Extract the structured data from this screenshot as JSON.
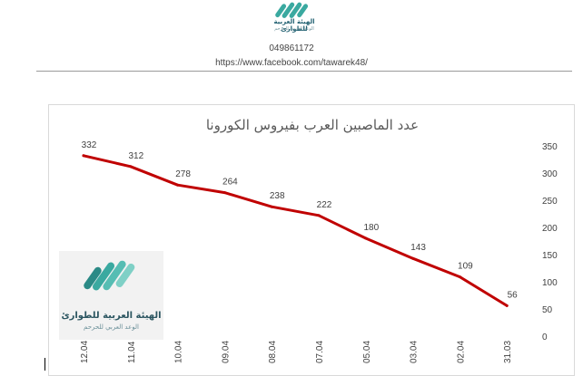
{
  "header": {
    "logo_text": "الهيئة العربية للطوارئ",
    "logo_subtext": "الوعد العربي للحرحم",
    "phone": "049861172",
    "url": "https://www.facebook.com/tawarek48/"
  },
  "watermark": {
    "logo_text": "الهيئة العربية للطوارئ",
    "logo_subtext": "الوعد العربي للحرحم"
  },
  "colors": {
    "line": "#c00000",
    "brand_teal": "#3aa9a0",
    "brand_dark": "#2b5560"
  },
  "chart_data": {
    "type": "line",
    "title": "عدد الماصبين العرب بفيروس الكورونا",
    "categories": [
      "12.04",
      "11.04",
      "10.04",
      "09.04",
      "08.04",
      "07.04",
      "05.04",
      "03.04",
      "02.04",
      "31.03"
    ],
    "values": [
      332,
      312,
      278,
      264,
      238,
      222,
      180,
      143,
      109,
      56
    ],
    "y_ticks": [
      "0",
      "50",
      "100",
      "150",
      "200",
      "250",
      "300",
      "350"
    ],
    "ylim": [
      0,
      350
    ],
    "y_axis_position": "right",
    "grid": false,
    "legend": "none",
    "data_labels": true
  }
}
